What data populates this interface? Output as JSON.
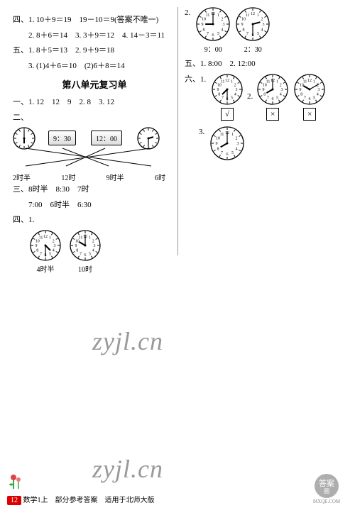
{
  "left": {
    "q4_lines": [
      "四、1. 10＋9＝19　19－10＝9(答案不唯一)",
      "　　2. 8＋6＝14　3. 3＋9＝12　4. 14－3＝11"
    ],
    "q5_lines": [
      "五、1. 8＋5＝13　2. 9＋9＝18",
      "　　3. (1)4＋6＝10　(2)6＋8＝14"
    ],
    "title": "第八单元复习单",
    "q1": "一、1. 12　12　9　2. 8　3. 12",
    "q2_label": "二、",
    "match": {
      "top_clocks": [
        {
          "h": 6,
          "m": 0
        },
        null,
        null,
        {
          "h": 2.5,
          "m": 30
        }
      ],
      "digitals": [
        "9：30",
        "12：00"
      ],
      "bottom_labels": [
        "2时半",
        "12时",
        "9时半",
        "6时"
      ]
    },
    "q3_lines": [
      "三、8时半　8:30　7时",
      "　　7:00　6时半　6:30"
    ],
    "q4b_label": "四、1.",
    "q4b_clocks": [
      {
        "h": 4.5,
        "m": 30,
        "label": "4时半"
      },
      {
        "h": 10,
        "m": 0,
        "label": "10时"
      }
    ]
  },
  "right": {
    "q2_label": "2.",
    "q2_clocks": [
      {
        "h": 9,
        "m": 0,
        "label": "9：00"
      },
      {
        "h": 2.5,
        "m": 30,
        "label": "2：30"
      }
    ],
    "q5": "五、1. 8:00　2. 12:00",
    "q6_label": "六、1.",
    "q6_q2_label": "2.",
    "q6_clocks": [
      {
        "h": 7.5,
        "m": 30,
        "ans": "√"
      },
      {
        "h": 8,
        "m": 0,
        "ans": "×"
      },
      {
        "h": 10,
        "m": 10,
        "ans": "×"
      }
    ],
    "q6_3_label": "3.",
    "q6_3_clock": {
      "h": 8,
      "m": 0
    }
  },
  "watermark": "zyjl.cn",
  "footer": {
    "pagenum": "12",
    "text": "数学1上　部分参考答案　适用于北师大版"
  },
  "logo": {
    "text1": "答案",
    "text2": "MXQE.COM"
  }
}
